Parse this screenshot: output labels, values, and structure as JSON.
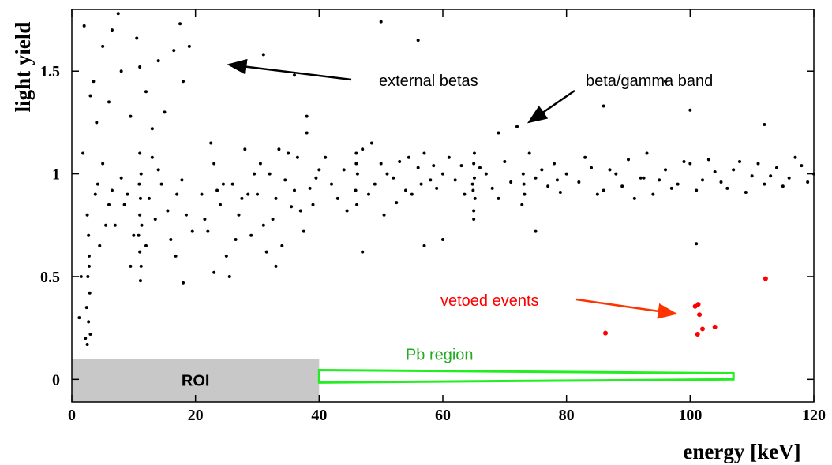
{
  "chart_data": {
    "type": "scatter",
    "x_label": "energy [keV]",
    "y_label": "light yield",
    "xlim": [
      0,
      120
    ],
    "ylim": [
      -0.11,
      1.8
    ],
    "xticks": [
      0,
      20,
      40,
      60,
      80,
      100,
      120
    ],
    "yticks": [
      0,
      0.5,
      1,
      1.5
    ],
    "series": [
      {
        "color": "#000000",
        "x": [
          2,
          3.5,
          5,
          6,
          7.5,
          8,
          9.5,
          10.5,
          12,
          14,
          15,
          16.5,
          17.5,
          18,
          4,
          6.5,
          11,
          13,
          19,
          3,
          2.5,
          2.7,
          2.8,
          2.6,
          2.9,
          2.4,
          2.7,
          3.0,
          2.5,
          2.8,
          1.2,
          1.5,
          4.5,
          5.5,
          3.8,
          1.8,
          4.2,
          6,
          2.2,
          5,
          11,
          11.2,
          10.9,
          11.1,
          11,
          11.3,
          10.8,
          11,
          11.2,
          11.1,
          7,
          8.5,
          9,
          10,
          12.5,
          13.5,
          14.5,
          15.5,
          16,
          17,
          18.5,
          19.5,
          8,
          14,
          16.8,
          12,
          9.5,
          6.5,
          17.8,
          13,
          21,
          22,
          23,
          24,
          25,
          26,
          27,
          28,
          29,
          30,
          31,
          32,
          33,
          34,
          35,
          36,
          37,
          38,
          39,
          40,
          22.5,
          24.5,
          26.5,
          28.5,
          30.5,
          32.5,
          34.5,
          36.5,
          38.5,
          25.5,
          27.5,
          33.5,
          37.5,
          39.5,
          21.5,
          29.5,
          35.5,
          31.5,
          23.5,
          38,
          46,
          46.2,
          45.9,
          46.1,
          46,
          42,
          44,
          48,
          50,
          52,
          54,
          56,
          58,
          60,
          41,
          43,
          47,
          49,
          51,
          53,
          55,
          57,
          59,
          44.5,
          48.5,
          52.5,
          56.5,
          58.5,
          50.5,
          54.5,
          65,
          65.1,
          64.9,
          65.2,
          65,
          65.1,
          64.8,
          65,
          73,
          73.2,
          72.8,
          73.1,
          62,
          63,
          67,
          68,
          70,
          71,
          75,
          76,
          77,
          78,
          79,
          80,
          61,
          69,
          74,
          66,
          63.5,
          78.5,
          82,
          84,
          86,
          88,
          90,
          92,
          94,
          96,
          98,
          100,
          102,
          104,
          106,
          108,
          110,
          112,
          114,
          116,
          118,
          120,
          83,
          85,
          87,
          89,
          91,
          93,
          95,
          97,
          99,
          101,
          103,
          105,
          107,
          109,
          111,
          113,
          115,
          117,
          119,
          92.5,
          31,
          36,
          50,
          56,
          69,
          72,
          96,
          100,
          112,
          86,
          18,
          47,
          57,
          60,
          75,
          101,
          33,
          23
        ],
        "values": [
          1.72,
          1.45,
          1.62,
          1.35,
          1.78,
          1.5,
          1.28,
          1.66,
          1.4,
          1.55,
          1.3,
          1.6,
          1.73,
          1.45,
          1.25,
          1.7,
          1.52,
          1.22,
          1.62,
          1.38,
          0.8,
          0.7,
          0.6,
          0.5,
          0.42,
          0.35,
          0.28,
          0.22,
          0.17,
          0.55,
          0.3,
          0.5,
          0.65,
          0.75,
          0.9,
          1.1,
          0.95,
          0.85,
          0.2,
          1.05,
          1.1,
          1.0,
          0.95,
          0.88,
          0.8,
          0.75,
          0.7,
          0.62,
          0.55,
          0.48,
          0.75,
          0.85,
          0.9,
          0.7,
          0.88,
          0.78,
          0.95,
          0.82,
          0.68,
          0.9,
          0.8,
          0.72,
          0.98,
          1.02,
          0.6,
          0.65,
          0.55,
          0.92,
          0.97,
          1.08,
          0.9,
          0.72,
          1.05,
          0.85,
          0.6,
          0.95,
          0.8,
          1.12,
          0.7,
          0.9,
          0.75,
          1.0,
          0.88,
          0.65,
          1.1,
          0.92,
          0.82,
          1.2,
          0.85,
          1.02,
          1.15,
          0.95,
          0.68,
          0.9,
          1.05,
          0.78,
          0.97,
          1.08,
          0.93,
          0.5,
          0.88,
          1.12,
          0.72,
          0.98,
          0.78,
          1.0,
          0.84,
          0.62,
          0.92,
          1.28,
          1.1,
          1.0,
          0.92,
          0.85,
          1.05,
          0.95,
          1.02,
          0.9,
          1.05,
          0.98,
          0.92,
          1.03,
          0.97,
          1.0,
          1.08,
          0.88,
          1.12,
          0.95,
          1.0,
          1.06,
          0.9,
          1.1,
          0.93,
          0.82,
          1.15,
          0.86,
          0.95,
          1.04,
          0.8,
          1.08,
          1.05,
          0.98,
          0.92,
          0.88,
          0.82,
          1.1,
          0.95,
          0.78,
          1.0,
          0.9,
          0.85,
          0.95,
          0.97,
          1.04,
          1.0,
          0.93,
          1.06,
          0.96,
          0.98,
          1.02,
          0.94,
          1.05,
          0.91,
          1.0,
          1.08,
          0.88,
          1.1,
          1.03,
          0.9,
          0.97,
          0.96,
          1.03,
          0.92,
          1.0,
          1.07,
          0.98,
          0.9,
          1.02,
          0.95,
          1.05,
          0.97,
          1.01,
          0.93,
          1.06,
          0.99,
          0.95,
          1.03,
          0.98,
          1.04,
          1.0,
          1.08,
          0.9,
          1.02,
          0.94,
          0.88,
          1.1,
          0.97,
          0.93,
          1.06,
          0.92,
          1.07,
          0.96,
          1.02,
          0.91,
          1.05,
          0.99,
          0.94,
          1.08,
          0.96,
          0.98,
          1.58,
          1.48,
          1.74,
          1.65,
          1.2,
          1.23,
          1.45,
          1.31,
          1.24,
          1.33,
          0.47,
          0.62,
          0.65,
          0.68,
          0.72,
          0.66,
          0.55,
          0.52
        ]
      },
      {
        "name": "vetoed events",
        "color": "#ff0000",
        "x": [
          86.3,
          100.8,
          101.3,
          101.5,
          101.2,
          102,
          104,
          112.2
        ],
        "values": [
          0.225,
          0.355,
          0.365,
          0.315,
          0.22,
          0.245,
          0.255,
          0.49
        ]
      }
    ],
    "regions": [
      {
        "label": "ROI",
        "color": "#c8c8c8",
        "x": [
          0,
          40
        ],
        "y": [
          -0.11,
          0.1
        ]
      },
      {
        "label": "Pb region",
        "color": "#22ee22",
        "x": [
          40,
          107
        ],
        "y": [
          0,
          0.03
        ]
      }
    ],
    "annotations": [
      "external betas",
      "beta/gamma band"
    ]
  }
}
